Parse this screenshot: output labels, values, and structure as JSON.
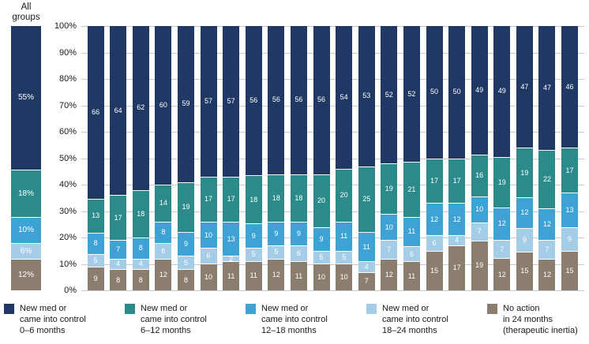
{
  "chart_data": {
    "type": "bar",
    "variant": "stacked-100-percent",
    "title": "",
    "xlabel": "",
    "ylabel": "",
    "ylim": [
      0,
      100
    ],
    "grid": "horizontal",
    "legend_position": "bottom",
    "y_ticks": [
      "100%",
      "90%",
      "80%",
      "70%",
      "60%",
      "50%",
      "40%",
      "30%",
      "20%",
      "10%",
      "0%"
    ],
    "n_bars": 22,
    "stack_order": "first series on top, last series at bottom",
    "all_groups": {
      "label_lines": [
        "All",
        "groups"
      ],
      "values": [
        55,
        18,
        10,
        6,
        12
      ],
      "segment_labels": [
        "55%",
        "18%",
        "10%",
        "6%",
        "12%"
      ]
    },
    "series": [
      {
        "name": "New med or came into control 0–6 months",
        "legend_lines": [
          "New med or",
          "came into control",
          "0–6 months"
        ],
        "color": "#1f3864",
        "values": [
          66,
          64,
          62,
          60,
          59,
          57,
          57,
          56,
          56,
          56,
          56,
          54,
          53,
          52,
          52,
          50,
          50,
          49,
          49,
          47,
          47,
          46
        ]
      },
      {
        "name": "New med or came into control 6–12 months",
        "legend_lines": [
          "New med or",
          "came into control",
          "6–12 months"
        ],
        "color": "#2b8b8a",
        "values": [
          13,
          17,
          18,
          14,
          19,
          17,
          17,
          18,
          18,
          18,
          20,
          20,
          25,
          19,
          21,
          17,
          17,
          16,
          19,
          19,
          22,
          17
        ]
      },
      {
        "name": "New med or came into control 12–18 months",
        "legend_lines": [
          "New med or",
          "came into control",
          "12–18 months"
        ],
        "color": "#3ea2d4",
        "values": [
          8,
          7,
          8,
          8,
          9,
          10,
          13,
          9,
          9,
          9,
          9,
          11,
          11,
          10,
          11,
          12,
          12,
          10,
          12,
          12,
          12,
          13
        ]
      },
      {
        "name": "New med or came into control 18–24 months",
        "legend_lines": [
          "New med or",
          "came into control",
          "18–24 months"
        ],
        "color": "#a6cde8",
        "values": [
          5,
          4,
          4,
          6,
          5,
          6,
          2,
          5,
          5,
          6,
          5,
          5,
          4,
          7,
          6,
          6,
          4,
          7,
          7,
          9,
          7,
          9
        ]
      },
      {
        "name": "No action in 24 months (therapeutic inertia)",
        "legend_lines": [
          "No action",
          "in 24 months",
          "(therapeutic inertia)"
        ],
        "color": "#8b7e6e",
        "values": [
          9,
          8,
          8,
          12,
          8,
          10,
          11,
          11,
          12,
          11,
          10,
          10,
          7,
          12,
          11,
          15,
          17,
          19,
          12,
          15,
          12,
          15
        ]
      }
    ]
  }
}
